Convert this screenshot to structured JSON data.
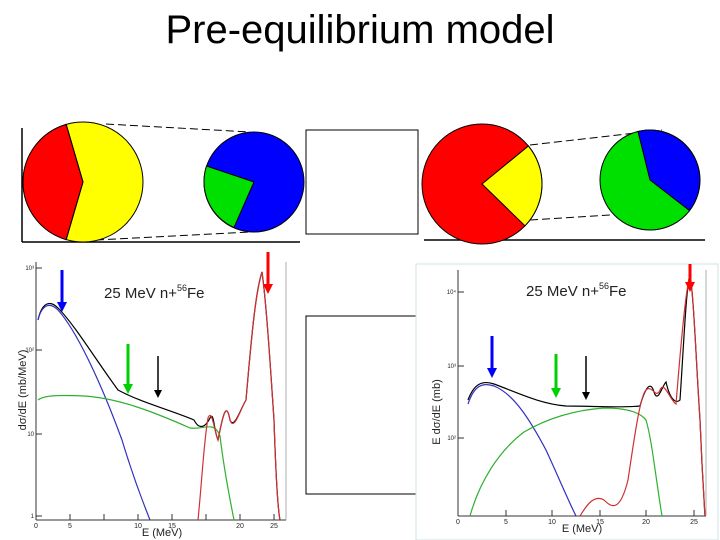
{
  "slide": {
    "title": "Pre-equilibrium model"
  },
  "colors": {
    "red": "#ff0000",
    "yellow": "#ffff00",
    "blue": "#0000ff",
    "green": "#00c000",
    "black": "#000000"
  },
  "left_plot": {
    "title_prefix": "25 MeV n+",
    "title_mass": "56",
    "title_element": "Fe",
    "ylabel": "dσ/dE (mb/MeV)",
    "xlabel": "E (MeV)",
    "x_ticks": [
      "0",
      "5",
      "10",
      "15",
      "20",
      "25"
    ],
    "y_ticks": [
      "10³",
      "10²",
      "10",
      "1"
    ]
  },
  "right_plot": {
    "title_prefix": "25 MeV n+",
    "title_mass": "56",
    "title_element": "Fe",
    "ylabel": "E dσ/dE (mb)",
    "xlabel": "E (MeV)",
    "x_ticks": [
      "0",
      "5",
      "10",
      "15",
      "20",
      "25"
    ],
    "y_ticks": [
      "10⁴",
      "10³",
      "10²"
    ]
  }
}
